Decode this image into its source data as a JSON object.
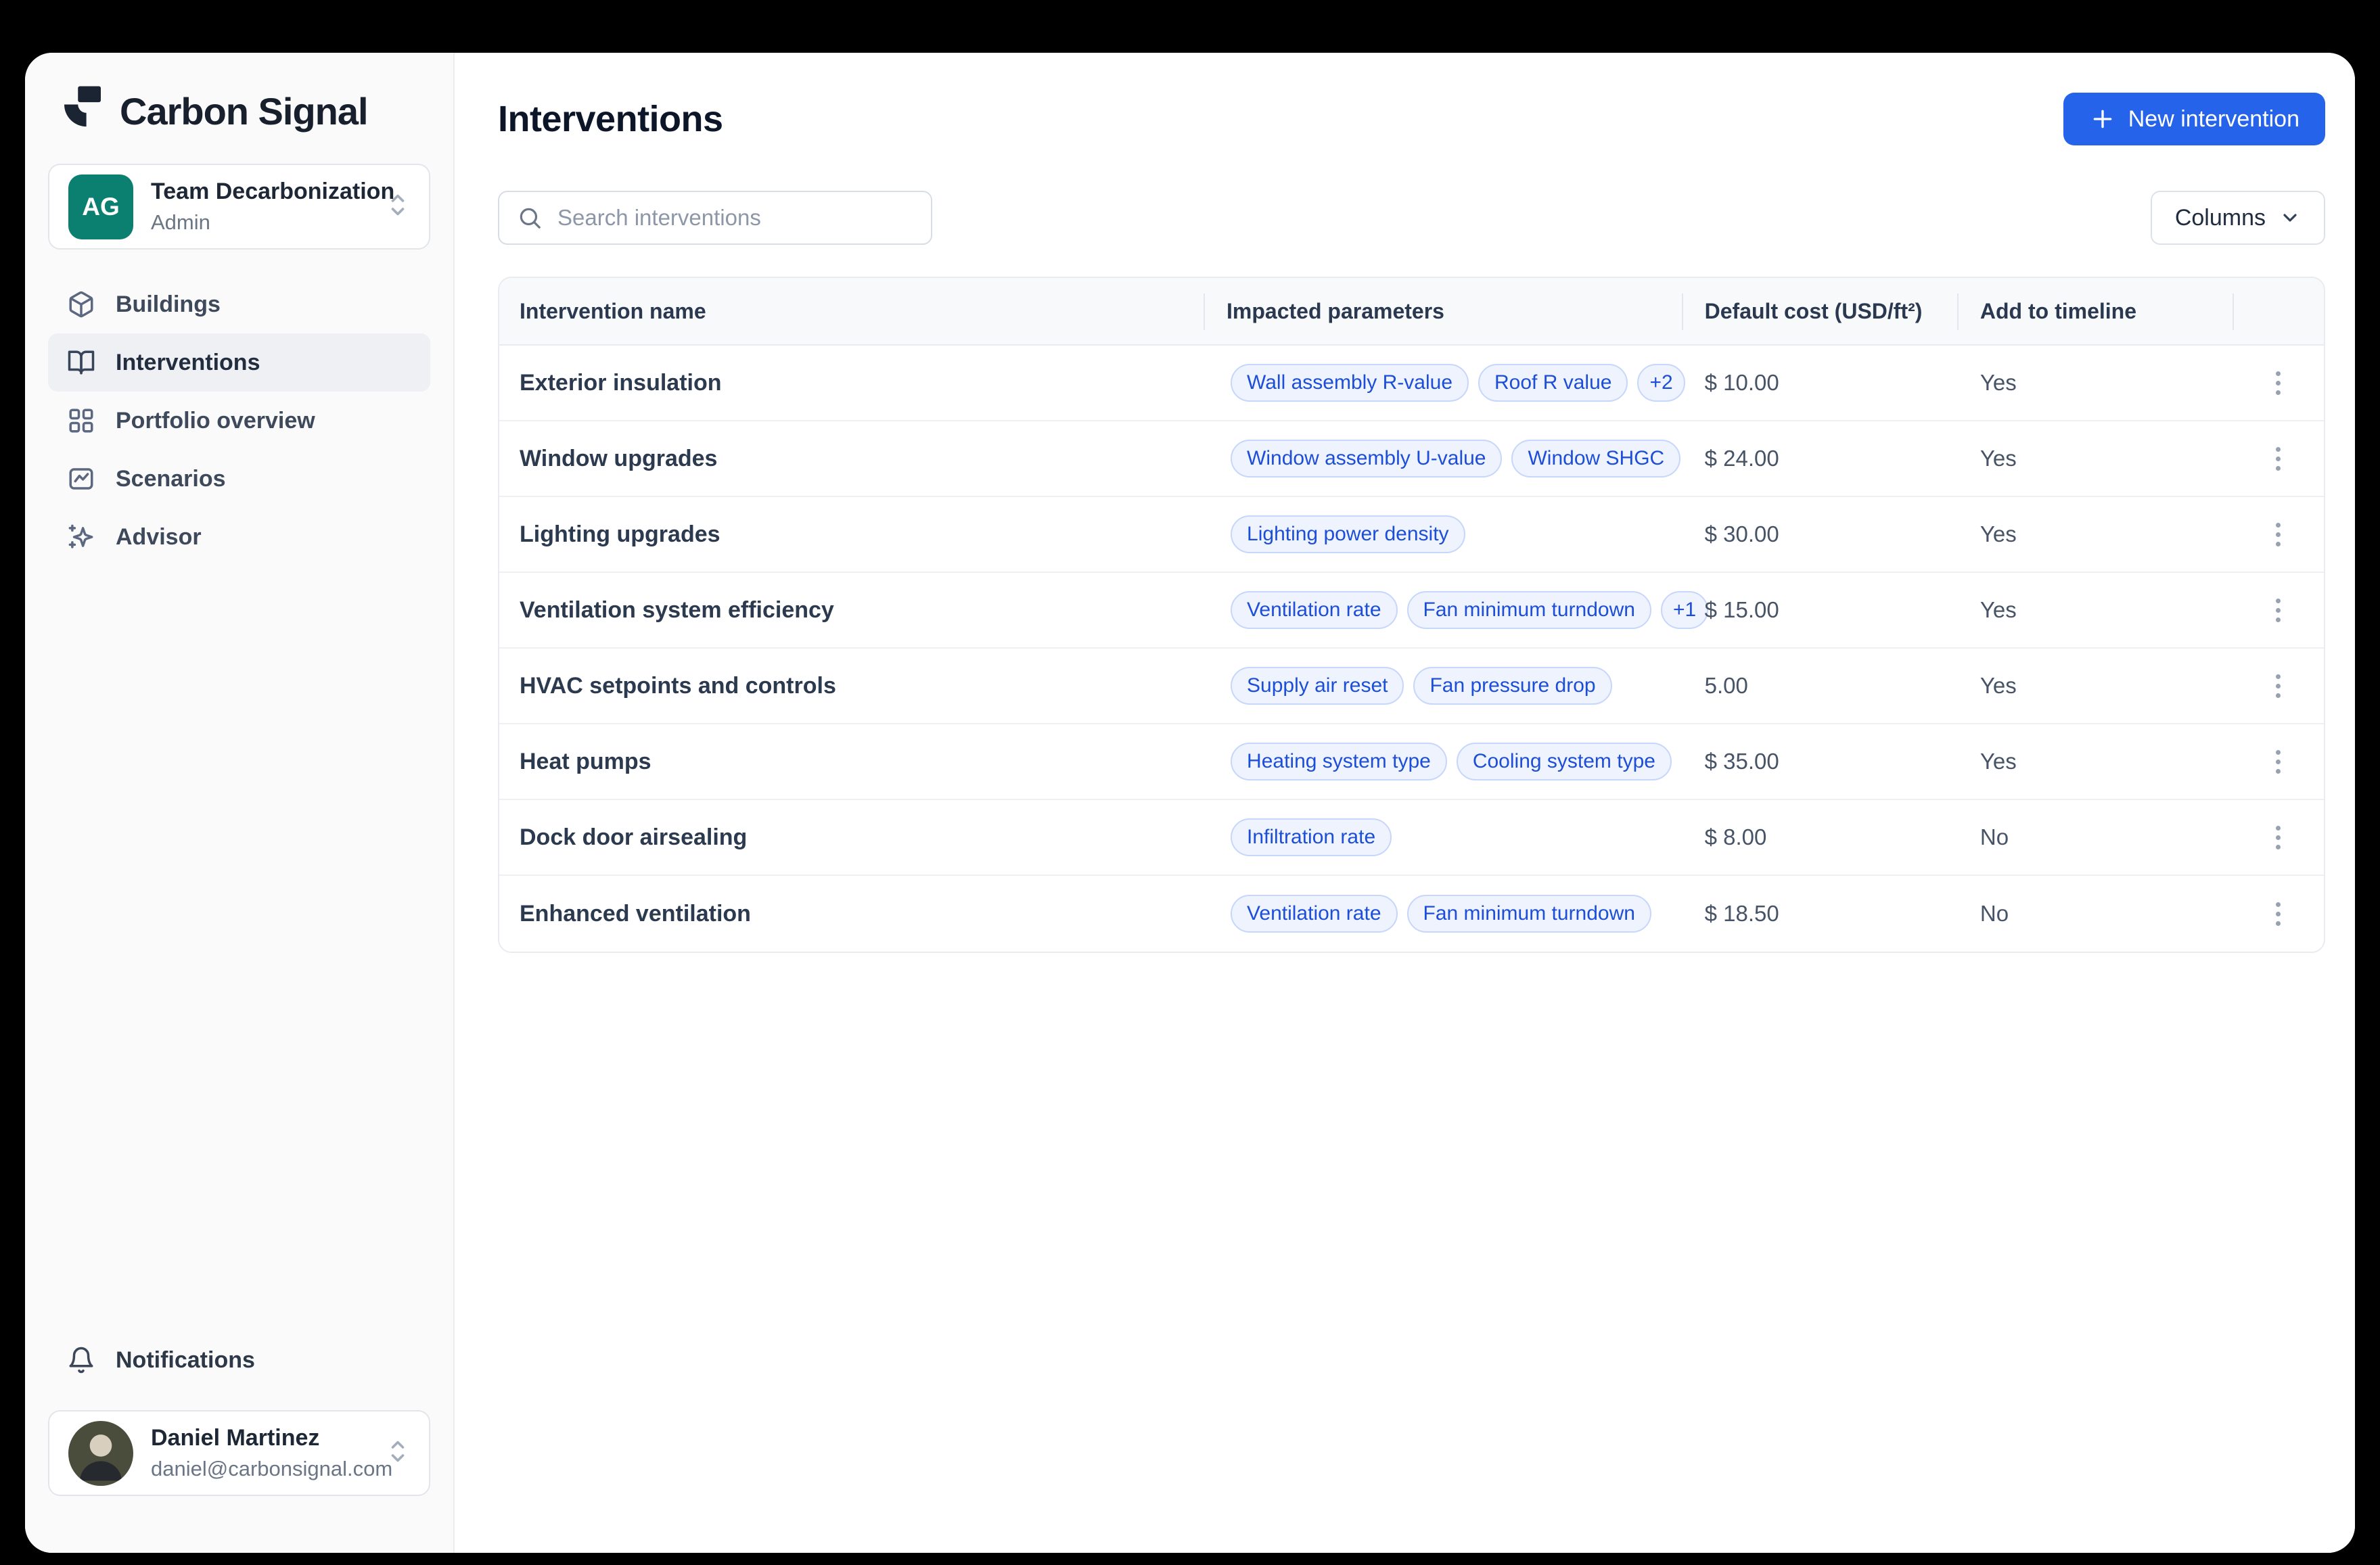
{
  "app": {
    "name": "Carbon Signal"
  },
  "team": {
    "initials": "AG",
    "name": "Team Decarbonization",
    "role": "Admin"
  },
  "sidebar": {
    "items": [
      {
        "label": "Buildings",
        "icon": "box-icon",
        "active": false
      },
      {
        "label": "Interventions",
        "icon": "book-open-icon",
        "active": true
      },
      {
        "label": "Portfolio overview",
        "icon": "grid-icon",
        "active": false
      },
      {
        "label": "Scenarios",
        "icon": "chart-frame-icon",
        "active": false
      },
      {
        "label": "Advisor",
        "icon": "sparkles-icon",
        "active": false
      }
    ],
    "notifications_label": "Notifications"
  },
  "user": {
    "name": "Daniel Martinez",
    "email": "daniel@carbonsignal.com"
  },
  "header": {
    "title": "Interventions",
    "new_button_label": "New intervention"
  },
  "toolbar": {
    "search_placeholder": "Search interventions",
    "columns_label": "Columns"
  },
  "table": {
    "columns": [
      "Intervention name",
      "Impacted parameters",
      "Default cost (USD/ft²)",
      "Add to timeline",
      ""
    ],
    "rows": [
      {
        "name": "Exterior insulation",
        "params": [
          "Wall assembly R-value",
          "Roof R value"
        ],
        "overflow": "+2",
        "cost": "$ 10.00",
        "timeline": "Yes"
      },
      {
        "name": "Window upgrades",
        "params": [
          "Window assembly U-value",
          "Window SHGC"
        ],
        "overflow": "",
        "cost": "$ 24.00",
        "timeline": "Yes"
      },
      {
        "name": "Lighting upgrades",
        "params": [
          "Lighting power density"
        ],
        "overflow": "",
        "cost": "$ 30.00",
        "timeline": "Yes"
      },
      {
        "name": "Ventilation system efficiency",
        "params": [
          "Ventilation rate",
          "Fan minimum turndown"
        ],
        "overflow": "+1",
        "cost": "$ 15.00",
        "timeline": "Yes"
      },
      {
        "name": "HVAC setpoints and controls",
        "params": [
          "Supply air reset",
          "Fan pressure drop"
        ],
        "overflow": "",
        "cost": "5.00",
        "timeline": "Yes"
      },
      {
        "name": "Heat pumps",
        "params": [
          "Heating system type",
          "Cooling system type"
        ],
        "overflow": "",
        "cost": "$ 35.00",
        "timeline": "Yes"
      },
      {
        "name": "Dock door airsealing",
        "params": [
          "Infiltration rate"
        ],
        "overflow": "",
        "cost": "$ 8.00",
        "timeline": "No"
      },
      {
        "name": "Enhanced ventilation",
        "params": [
          "Ventilation rate",
          "Fan minimum turndown"
        ],
        "overflow": "",
        "cost": "$ 18.50",
        "timeline": "No"
      }
    ]
  },
  "colors": {
    "frame_bg": "#000000",
    "primary": "#2563eb",
    "badge_bg": "#eef3fe",
    "badge_border": "#c7d6fb",
    "badge_text": "#1d4ed8",
    "team_avatar_bg": "#0c8070",
    "logo": "#1b2433",
    "sidebar_bg": "#fafafb",
    "table_header_bg": "#f8f9fb"
  }
}
